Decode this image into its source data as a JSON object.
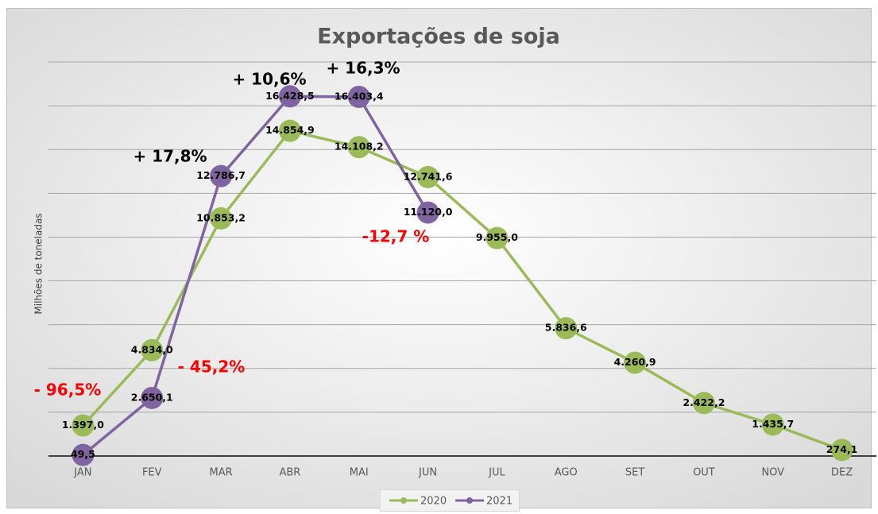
{
  "chart_data": {
    "type": "line",
    "title": "Exportações de soja",
    "y_label": "Milhões de toneladas",
    "categories": [
      "JAN",
      "FEV",
      "MAR",
      "ABR",
      "MAI",
      "JUN",
      "JUL",
      "AGO",
      "SET",
      "OUT",
      "NOV",
      "DEZ"
    ],
    "series": [
      {
        "name": "2020",
        "color": "#9bbb59",
        "values": [
          1397.0,
          4834.0,
          10853.2,
          14854.9,
          14108.2,
          12741.6,
          9955.0,
          5836.6,
          4260.9,
          2422.2,
          1435.7,
          274.1
        ],
        "value_labels": [
          "1.397,0",
          "4.834,0",
          "10.853,2",
          "14.854,9",
          "14.108,2",
          "12.741,6",
          "9.955,0",
          "5.836,6",
          "4.260,9",
          "2.422,2",
          "1.435,7",
          "274,1"
        ]
      },
      {
        "name": "2021",
        "color": "#8064a2",
        "values": [
          49.5,
          2650.1,
          12786.7,
          16428.5,
          16403.4,
          11120.0,
          null,
          null,
          null,
          null,
          null,
          null
        ],
        "value_labels": [
          "49,5",
          "2.650,1",
          "12.786,7",
          "16.428,5",
          "16.403,4",
          "11.120,0",
          null,
          null,
          null,
          null,
          null,
          null
        ]
      }
    ],
    "ylim": [
      0,
      18000
    ],
    "yticks": [
      0,
      2000,
      4000,
      6000,
      8000,
      10000,
      12000,
      14000,
      16000,
      18000
    ],
    "grid": true,
    "legend": "bottom",
    "annotations": [
      {
        "text": "- 96,5%",
        "color": "#ff0000"
      },
      {
        "text": "- 45,2%",
        "color": "#ff0000"
      },
      {
        "text": "+ 17,8%",
        "color": "#000000"
      },
      {
        "text": "+ 10,6%",
        "color": "#000000"
      },
      {
        "text": "+ 16,3%",
        "color": "#000000"
      },
      {
        "text": "-12,7 %",
        "color": "#ff0000"
      }
    ]
  }
}
